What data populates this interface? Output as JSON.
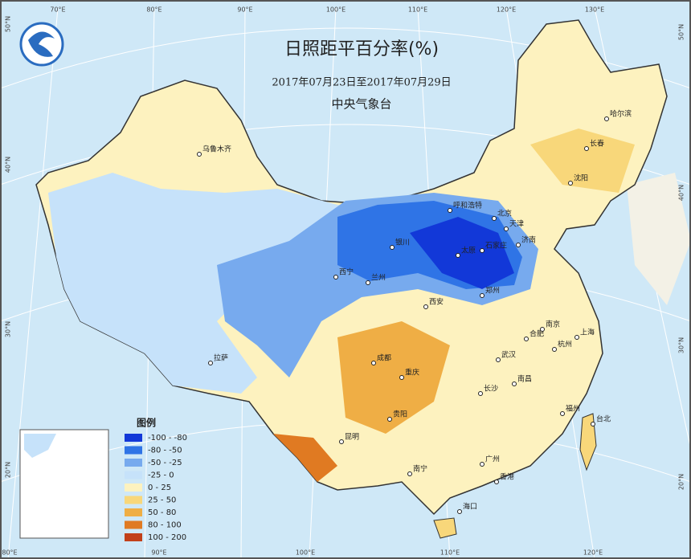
{
  "header": {
    "title": "日照距平百分率(%)",
    "period": "2017年07月23日至2017年07月29日",
    "agency": "中央气象台"
  },
  "legend": {
    "title": "图例",
    "items": [
      {
        "label": "-100 - -80",
        "color": "#1238d8"
      },
      {
        "label": "-80 - -50",
        "color": "#2f74e6"
      },
      {
        "label": "-50 - -25",
        "color": "#77aaee"
      },
      {
        "label": "-25 - 0",
        "color": "#c6e2fa"
      },
      {
        "label": "0 - 25",
        "color": "#fdf2bf"
      },
      {
        "label": "25 - 50",
        "color": "#f8d77a"
      },
      {
        "label": "50 - 80",
        "color": "#efae45"
      },
      {
        "label": "80 - 100",
        "color": "#e07a22"
      },
      {
        "label": "100 - 200",
        "color": "#c2401a"
      }
    ]
  },
  "graticule": {
    "top": [
      "70°E",
      "80°E",
      "90°E",
      "100°E",
      "110°E",
      "120°E",
      "130°E"
    ],
    "bottom": [
      "80°E",
      "90°E",
      "100°E",
      "110°E",
      "120°E"
    ],
    "left": [
      "50°N",
      "40°N",
      "30°N",
      "20°N"
    ],
    "right": [
      "50°N",
      "40°N",
      "30°N",
      "20°N"
    ]
  },
  "cities": [
    "乌鲁木齐",
    "拉萨",
    "西宁",
    "兰州",
    "银川",
    "呼和浩特",
    "北京",
    "天津",
    "太原",
    "石家庄",
    "济南",
    "郑州",
    "西安",
    "成都",
    "重庆",
    "贵阳",
    "昆明",
    "南宁",
    "广州",
    "香港",
    "海口",
    "长沙",
    "武汉",
    "南昌",
    "合肥",
    "南京",
    "上海",
    "杭州",
    "福州",
    "台北",
    "沈阳",
    "长春",
    "哈尔滨"
  ]
}
